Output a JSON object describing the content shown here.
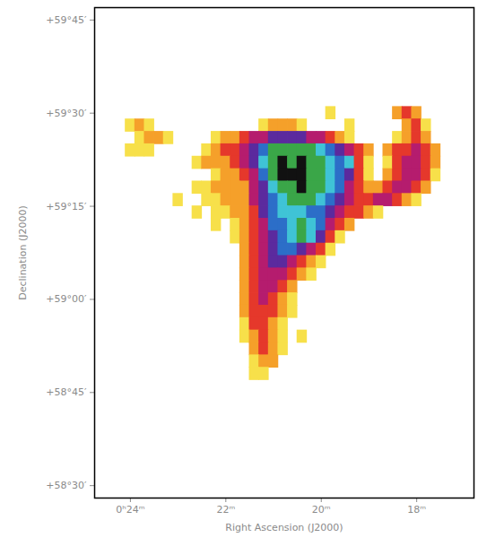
{
  "chart_data": {
    "type": "heatmap",
    "x_label": "Right Ascension (J2000)",
    "y_label": "Declination (J2000)",
    "xlim": [
      24.75,
      16.8
    ],
    "xticks": [
      {
        "value": 24,
        "label": "0ʰ24ᵐ"
      },
      {
        "value": 22,
        "label": "22ᵐ"
      },
      {
        "value": 20,
        "label": "20ᵐ"
      },
      {
        "value": 18,
        "label": "18ᵐ"
      }
    ],
    "ylim": [
      58.4667,
      59.7833
    ],
    "yticks": [
      {
        "value": 58.5,
        "label": "+58°30′"
      },
      {
        "value": 58.75,
        "label": "+58°45′"
      },
      {
        "value": 59,
        "label": "+59°00′"
      },
      {
        "value": 59.25,
        "label": "+59°15′"
      },
      {
        "value": 59.5,
        "label": "+59°30′"
      },
      {
        "value": 59.75,
        "label": "+59°45′"
      }
    ],
    "tick_labels": true,
    "grid": false,
    "cells": {
      "x": [
        24.2,
        24,
        23.8,
        23.6,
        23.4,
        23.2,
        23,
        22.8,
        22.6,
        22.4,
        22.2,
        22,
        21.8,
        21.6,
        21.4,
        21.2,
        21,
        20.8,
        20.6,
        20.4,
        20.2,
        20,
        19.8,
        19.6,
        19.4,
        19.2,
        19,
        18.8,
        18.6,
        18.4,
        18.2,
        18,
        17.8,
        17.6
      ],
      "y": [
        59.5,
        59.4667,
        59.4333,
        59.4,
        59.3667,
        59.3333,
        59.3,
        59.2667,
        59.2333,
        59.2,
        59.1667,
        59.1333,
        59.1,
        59.0667,
        59.0333,
        59,
        58.9667,
        58.9333,
        58.9,
        58.8667,
        58.8333,
        58.8
      ],
      "values": [
        [
          0,
          0,
          0,
          0,
          0,
          0,
          0,
          0,
          0,
          0,
          0,
          0,
          0,
          0,
          0,
          0,
          0,
          0,
          0,
          0,
          0,
          0,
          1,
          0,
          0,
          0,
          0,
          0,
          0,
          2,
          3,
          2,
          0,
          0
        ],
        [
          0,
          1,
          2,
          1,
          0,
          0,
          0,
          0,
          0,
          0,
          0,
          0,
          0,
          0,
          0,
          1,
          2,
          2,
          2,
          1,
          0,
          0,
          0,
          0,
          1,
          0,
          0,
          0,
          0,
          0,
          2,
          3,
          1,
          0
        ],
        [
          0,
          0,
          1,
          2,
          2,
          1,
          0,
          0,
          0,
          0,
          1,
          2,
          2,
          3,
          4,
          4,
          5,
          5,
          5,
          5,
          4,
          4,
          3,
          2,
          1,
          0,
          0,
          0,
          0,
          1,
          2,
          3,
          2,
          0
        ],
        [
          0,
          1,
          1,
          1,
          0,
          0,
          0,
          0,
          0,
          1,
          2,
          3,
          3,
          4,
          5,
          6,
          8,
          8,
          8,
          8,
          8,
          7,
          6,
          5,
          4,
          3,
          2,
          0,
          2,
          3,
          3,
          4,
          3,
          2
        ],
        [
          0,
          0,
          0,
          0,
          0,
          0,
          0,
          0,
          1,
          2,
          2,
          2,
          3,
          4,
          5,
          7,
          8,
          9,
          8,
          9,
          8,
          8,
          7,
          6,
          7,
          3,
          1,
          0,
          1,
          3,
          4,
          4,
          3,
          2
        ],
        [
          0,
          0,
          0,
          0,
          0,
          0,
          0,
          0,
          0,
          0,
          1,
          2,
          2,
          3,
          4,
          6,
          8,
          9,
          9,
          9,
          8,
          8,
          7,
          6,
          5,
          3,
          1,
          0,
          2,
          3,
          4,
          4,
          3,
          1
        ],
        [
          0,
          0,
          0,
          0,
          0,
          0,
          0,
          0,
          1,
          1,
          2,
          2,
          2,
          2,
          4,
          5,
          7,
          8,
          8,
          9,
          8,
          8,
          7,
          6,
          4,
          3,
          2,
          2,
          3,
          4,
          4,
          3,
          2,
          0
        ],
        [
          0,
          0,
          0,
          0,
          0,
          0,
          1,
          0,
          0,
          1,
          1,
          2,
          2,
          2,
          4,
          5,
          6,
          7,
          8,
          8,
          8,
          7,
          6,
          5,
          4,
          3,
          3,
          4,
          4,
          3,
          2,
          1,
          0,
          0
        ],
        [
          0,
          0,
          0,
          0,
          0,
          0,
          0,
          0,
          1,
          0,
          1,
          1,
          2,
          2,
          3,
          5,
          6,
          7,
          7,
          7,
          6,
          6,
          5,
          4,
          3,
          3,
          2,
          1,
          0,
          0,
          0,
          0,
          0,
          0
        ],
        [
          0,
          0,
          0,
          0,
          0,
          0,
          0,
          0,
          0,
          0,
          1,
          0,
          1,
          2,
          3,
          4,
          6,
          6,
          7,
          8,
          7,
          6,
          4,
          3,
          2,
          0,
          0,
          0,
          0,
          0,
          0,
          0,
          0,
          0
        ],
        [
          0,
          0,
          0,
          0,
          0,
          0,
          0,
          0,
          0,
          0,
          0,
          0,
          1,
          2,
          3,
          4,
          5,
          6,
          7,
          8,
          7,
          5,
          3,
          1,
          0,
          0,
          0,
          0,
          0,
          0,
          0,
          0,
          0,
          0
        ],
        [
          0,
          0,
          0,
          0,
          0,
          0,
          0,
          0,
          0,
          0,
          0,
          0,
          0,
          2,
          3,
          4,
          5,
          6,
          6,
          5,
          4,
          3,
          1,
          0,
          0,
          0,
          0,
          0,
          0,
          0,
          0,
          0,
          0,
          0
        ],
        [
          0,
          0,
          0,
          0,
          0,
          0,
          0,
          0,
          0,
          0,
          0,
          0,
          0,
          2,
          3,
          4,
          5,
          5,
          4,
          3,
          2,
          1,
          0,
          0,
          0,
          0,
          0,
          0,
          0,
          0,
          0,
          0,
          0,
          0
        ],
        [
          0,
          0,
          0,
          0,
          0,
          0,
          0,
          0,
          0,
          0,
          0,
          0,
          0,
          2,
          3,
          4,
          4,
          4,
          3,
          2,
          1,
          0,
          0,
          0,
          0,
          0,
          0,
          0,
          0,
          0,
          0,
          0,
          0,
          0
        ],
        [
          0,
          0,
          0,
          0,
          0,
          0,
          0,
          0,
          0,
          0,
          0,
          0,
          0,
          2,
          3,
          4,
          4,
          3,
          2,
          0,
          0,
          0,
          0,
          0,
          0,
          0,
          0,
          0,
          0,
          0,
          0,
          0,
          0,
          0
        ],
        [
          0,
          0,
          0,
          0,
          0,
          0,
          0,
          0,
          0,
          0,
          0,
          0,
          0,
          2,
          3,
          4,
          3,
          2,
          1,
          0,
          0,
          0,
          0,
          0,
          0,
          0,
          0,
          0,
          0,
          0,
          0,
          0,
          0,
          0
        ],
        [
          0,
          0,
          0,
          0,
          0,
          0,
          0,
          0,
          0,
          0,
          0,
          0,
          0,
          2,
          3,
          3,
          3,
          2,
          1,
          0,
          0,
          0,
          0,
          0,
          0,
          0,
          0,
          0,
          0,
          0,
          0,
          0,
          0,
          0
        ],
        [
          0,
          0,
          0,
          0,
          0,
          0,
          0,
          0,
          0,
          0,
          0,
          0,
          0,
          1,
          3,
          3,
          2,
          1,
          0,
          0,
          0,
          0,
          0,
          0,
          0,
          0,
          0,
          0,
          0,
          0,
          0,
          0,
          0,
          0
        ],
        [
          0,
          0,
          0,
          0,
          0,
          0,
          0,
          0,
          0,
          0,
          0,
          0,
          0,
          1,
          2,
          3,
          2,
          1,
          0,
          1,
          0,
          0,
          0,
          0,
          0,
          0,
          0,
          0,
          0,
          0,
          0,
          0,
          0,
          0
        ],
        [
          0,
          0,
          0,
          0,
          0,
          0,
          0,
          0,
          0,
          0,
          0,
          0,
          0,
          0,
          2,
          3,
          2,
          1,
          0,
          0,
          0,
          0,
          0,
          0,
          0,
          0,
          0,
          0,
          0,
          0,
          0,
          0,
          0,
          0
        ],
        [
          0,
          0,
          0,
          0,
          0,
          0,
          0,
          0,
          0,
          0,
          0,
          0,
          0,
          0,
          1,
          2,
          2,
          0,
          0,
          0,
          0,
          0,
          0,
          0,
          0,
          0,
          0,
          0,
          0,
          0,
          0,
          0,
          0,
          0
        ],
        [
          0,
          0,
          0,
          0,
          0,
          0,
          0,
          0,
          0,
          0,
          0,
          0,
          0,
          0,
          1,
          1,
          0,
          0,
          0,
          0,
          0,
          0,
          0,
          0,
          0,
          0,
          0,
          0,
          0,
          0,
          0,
          0,
          0,
          0
        ]
      ]
    }
  }
}
